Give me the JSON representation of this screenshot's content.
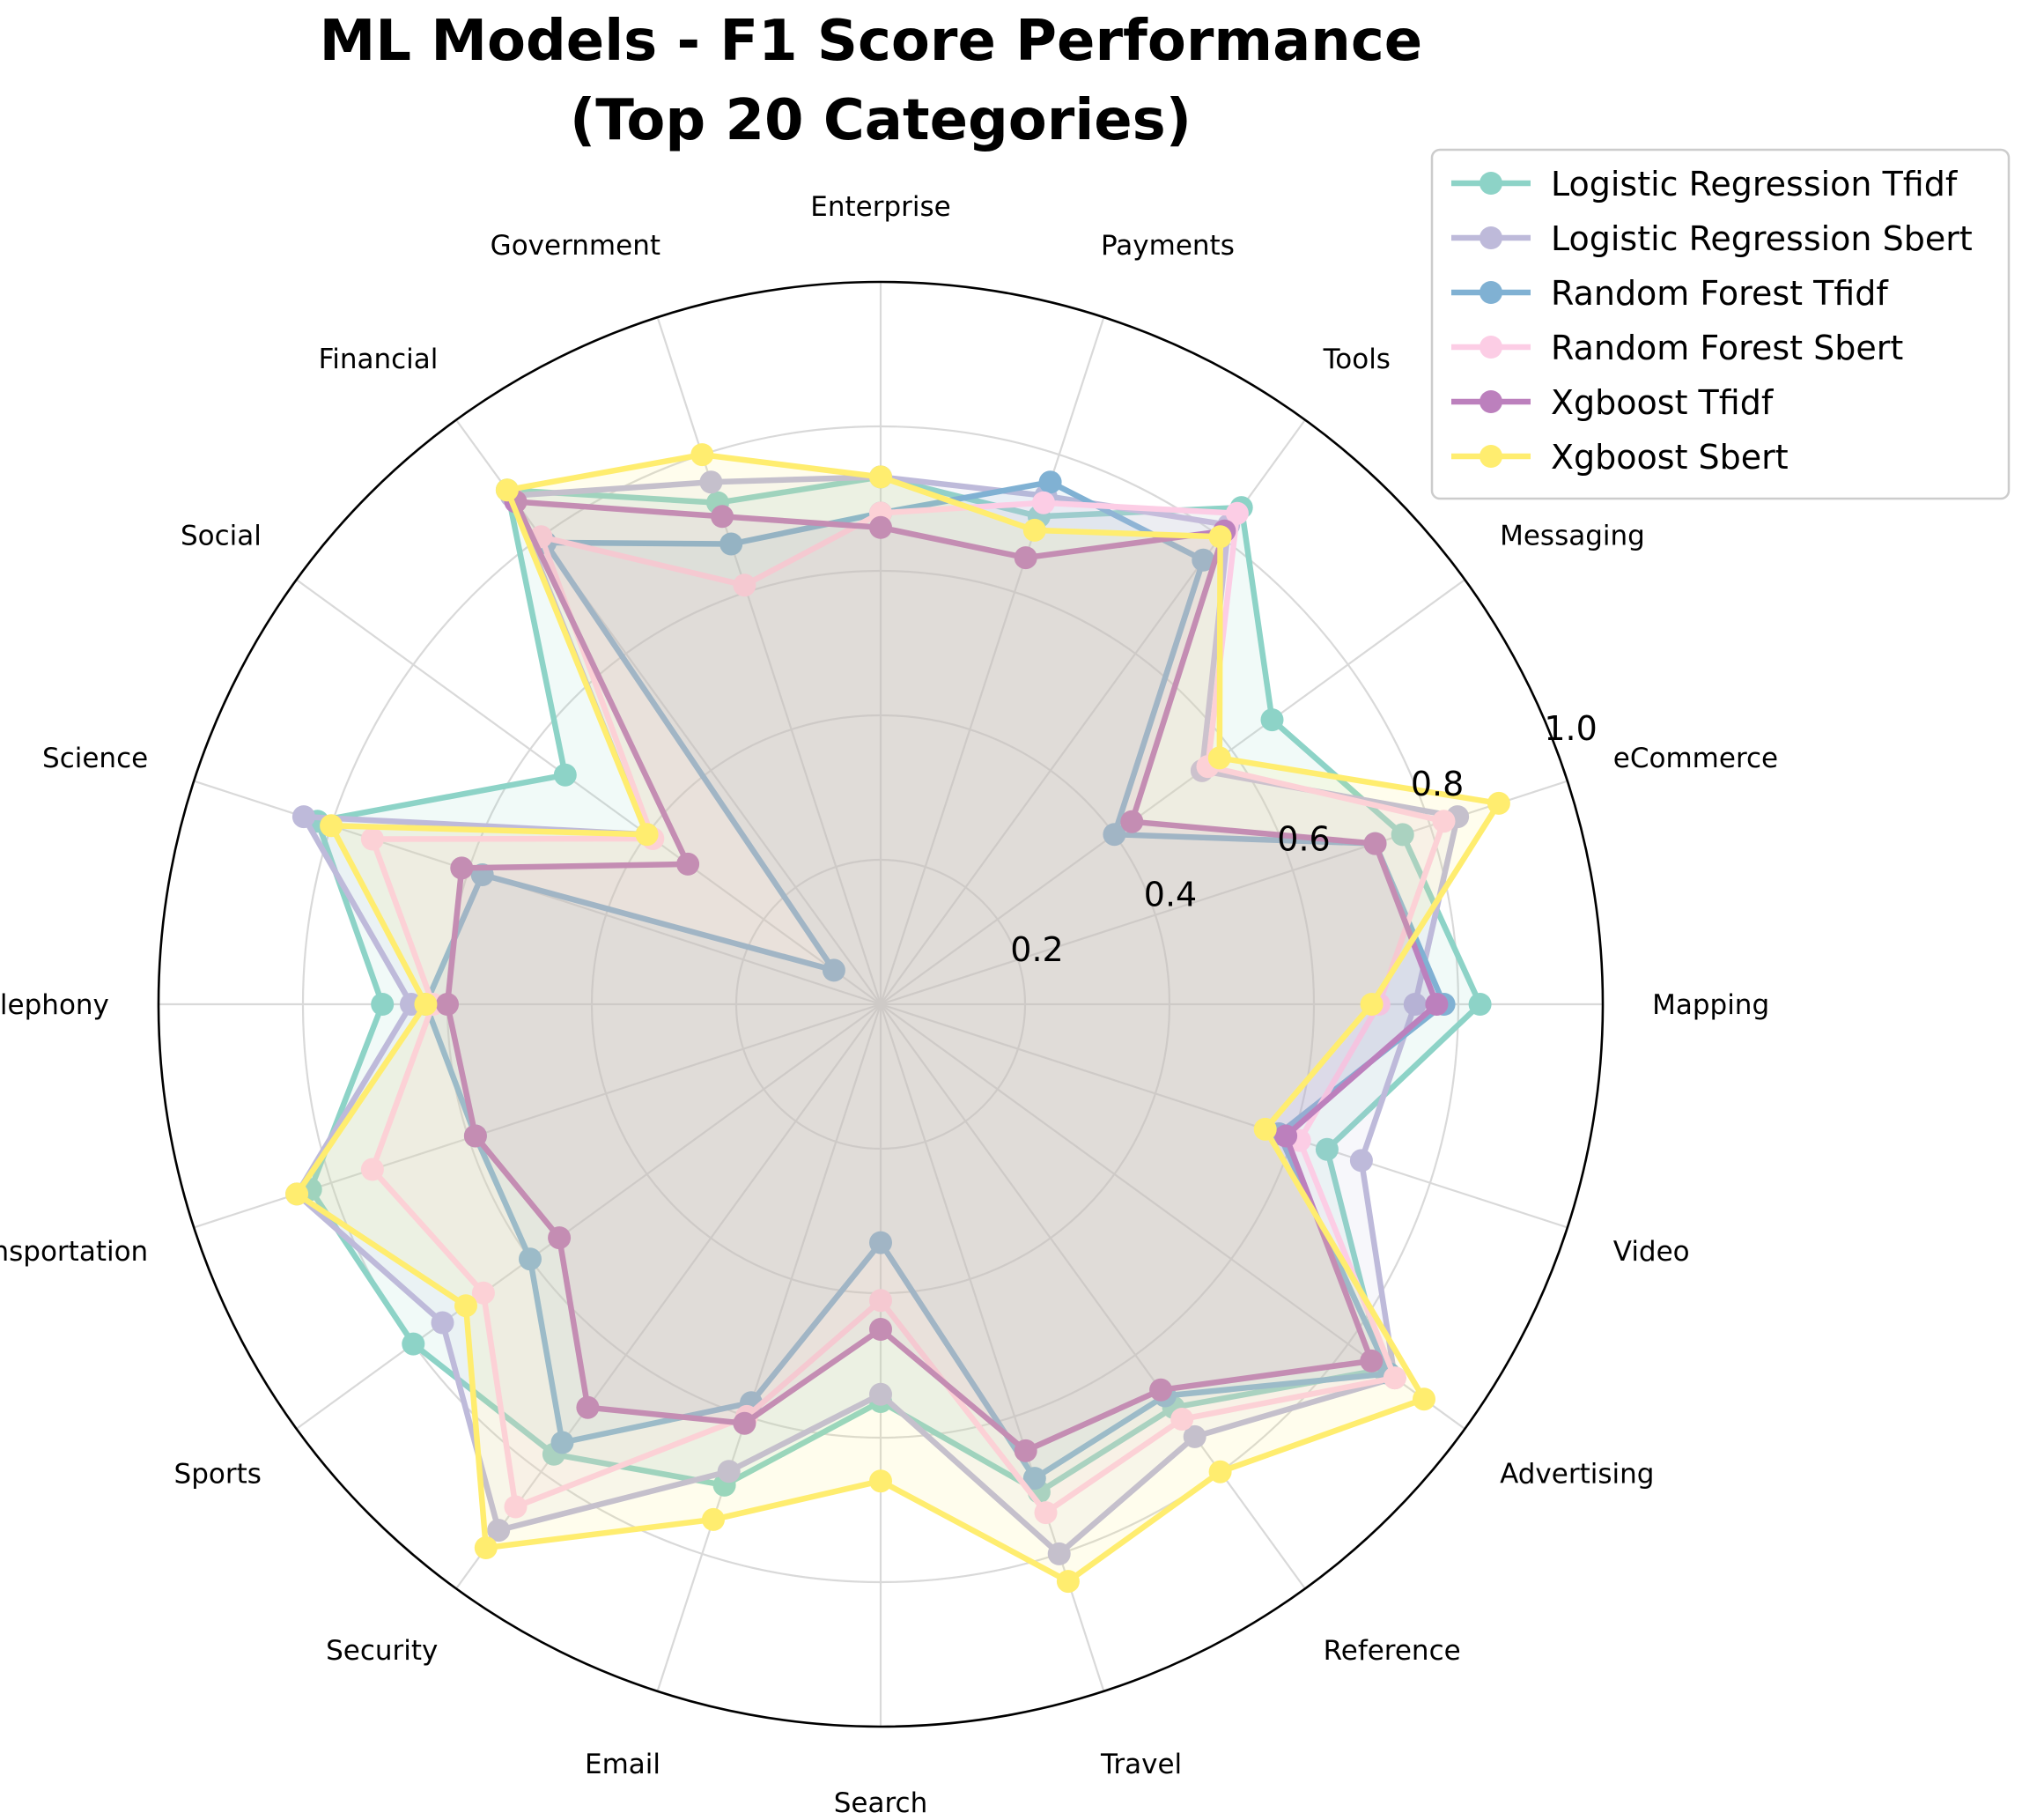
{
  "chart_data": {
    "type": "radar",
    "title": "ML Models - F1 Score Performance\n(Top 20 Categories)",
    "categories": [
      "Mapping",
      "eCommerce",
      "Messaging",
      "Tools",
      "Payments",
      "Enterprise",
      "Government",
      "Financial",
      "Social",
      "Science",
      "Telephony",
      "Transportation",
      "Sports",
      "Security",
      "Email",
      "Search",
      "Travel",
      "Reference",
      "Advertising",
      "Video"
    ],
    "rlim": [
      0,
      1.0
    ],
    "rticks": [
      0.2,
      0.4,
      0.6,
      0.8,
      1.0
    ],
    "rtick_labels": [
      "0.2",
      "0.4",
      "0.6",
      "0.8",
      "1.0"
    ],
    "grid": true,
    "legend_position": "top-right",
    "series": [
      {
        "name": "Logistic Regression Tfidf",
        "color": "#8dd3c7",
        "values": [
          0.83,
          0.76,
          0.67,
          0.85,
          0.71,
          0.73,
          0.73,
          0.88,
          0.54,
          0.82,
          0.69,
          0.83,
          0.8,
          0.77,
          0.7,
          0.55,
          0.71,
          0.69,
          0.86,
          0.65
        ]
      },
      {
        "name": "Logistic Regression Sbert",
        "color": "#bebada",
        "values": [
          0.74,
          0.84,
          0.55,
          0.82,
          0.74,
          0.73,
          0.76,
          0.87,
          0.4,
          0.84,
          0.65,
          0.85,
          0.75,
          0.9,
          0.68,
          0.54,
          0.8,
          0.74,
          0.88,
          0.7
        ]
      },
      {
        "name": "Random Forest Tfidf",
        "color": "#80b1d3",
        "values": [
          0.78,
          0.72,
          0.4,
          0.76,
          0.76,
          0.68,
          0.67,
          0.79,
          0.08,
          0.58,
          0.63,
          0.59,
          0.6,
          0.75,
          0.58,
          0.33,
          0.69,
          0.67,
          0.87,
          0.58
        ]
      },
      {
        "name": "Random Forest Sbert",
        "color": "#fccde5",
        "values": [
          0.69,
          0.82,
          0.56,
          0.84,
          0.73,
          0.68,
          0.61,
          0.8,
          0.39,
          0.74,
          0.62,
          0.74,
          0.68,
          0.86,
          0.6,
          0.41,
          0.74,
          0.71,
          0.88,
          0.61
        ]
      },
      {
        "name": "Xgboost Tfidf",
        "color": "#bc80bd",
        "values": [
          0.77,
          0.72,
          0.43,
          0.81,
          0.65,
          0.66,
          0.71,
          0.86,
          0.33,
          0.61,
          0.6,
          0.59,
          0.55,
          0.69,
          0.61,
          0.45,
          0.65,
          0.66,
          0.84,
          0.59
        ]
      },
      {
        "name": "Xgboost Sbert",
        "color": "#ffed6f",
        "values": [
          0.68,
          0.9,
          0.58,
          0.8,
          0.69,
          0.73,
          0.8,
          0.88,
          0.4,
          0.8,
          0.63,
          0.85,
          0.71,
          0.93,
          0.75,
          0.66,
          0.84,
          0.8,
          0.93,
          0.56
        ]
      }
    ]
  }
}
